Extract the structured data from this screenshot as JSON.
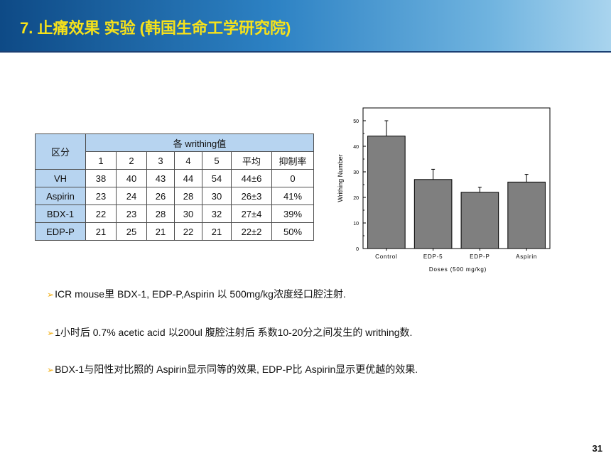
{
  "header": {
    "title": "7. 止痛效果 实验 (韩国生命工学研究院)"
  },
  "table": {
    "group_header": "区分",
    "span_header": "各 writhing值",
    "columns": [
      "1",
      "2",
      "3",
      "4",
      "5",
      "平均",
      "抑制率"
    ],
    "rows": [
      {
        "label": "VH",
        "cells": [
          "38",
          "40",
          "43",
          "44",
          "54",
          "44±6",
          "0"
        ]
      },
      {
        "label": "Aspirin",
        "cells": [
          "23",
          "24",
          "26",
          "28",
          "30",
          "26±3",
          "41%"
        ]
      },
      {
        "label": "BDX-1",
        "cells": [
          "22",
          "23",
          "28",
          "30",
          "32",
          "27±4",
          "39%"
        ]
      },
      {
        "label": "EDP-P",
        "cells": [
          "21",
          "25",
          "21",
          "22",
          "21",
          "22±2",
          "50%"
        ]
      }
    ]
  },
  "chart_data": {
    "type": "bar",
    "categories": [
      "Control",
      "EDP-5",
      "EDP-P",
      "Aspirin"
    ],
    "values": [
      44,
      27,
      22,
      26
    ],
    "errors": [
      6,
      4,
      2,
      3
    ],
    "xlabel": "Doses (500 mg/kg)",
    "ylabel": "Writhing Number",
    "ylim": [
      0,
      55
    ],
    "yticks": [
      "0",
      "10",
      "20",
      "30",
      "40",
      "50"
    ],
    "bar_color": "#7f7f7f",
    "grid": false
  },
  "bullets": [
    "ICR mouse里 BDX-1, EDP-P,Aspirin 以 500mg/kg浓度经口腔注射.",
    "1小时后 0.7% acetic acid 以200ul 腹腔注射后 系数10-20分之间发生的 writhing数.",
    "BDX-1与阳性对比照的 Aspirin显示同等的效果, EDP-P比 Aspirin显示更优越的效果."
  ],
  "page_number": "31",
  "colors": {
    "title": "#f7e21a",
    "header_cell": "#b7d4f0",
    "bullet_arrow": "#f2a900"
  }
}
